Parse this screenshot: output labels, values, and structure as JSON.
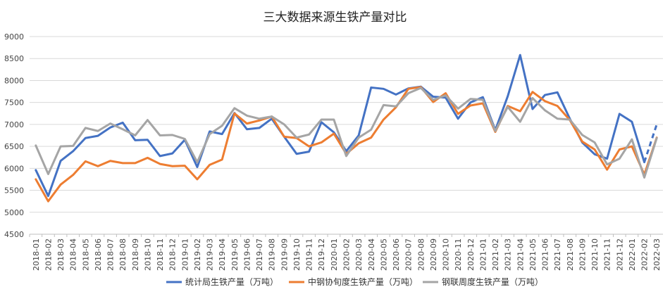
{
  "chart_data": {
    "type": "line",
    "title": "三大数据来源生铁产量对比",
    "xlabel": "",
    "ylabel": "",
    "ylim": [
      4500,
      9000
    ],
    "yticks": [
      4500,
      5000,
      5500,
      6000,
      6500,
      7000,
      7500,
      8000,
      8500,
      9000
    ],
    "grid": true,
    "legend_position": "bottom",
    "categories": [
      "2018-01",
      "2018-02",
      "2018-03",
      "2018-04",
      "2018-05",
      "2018-06",
      "2018-07",
      "2018-08",
      "2018-09",
      "2018-10",
      "2018-11",
      "2018-12",
      "2019-01",
      "2019-02",
      "2019-03",
      "2019-04",
      "2019-05",
      "2019-06",
      "2019-07",
      "2019-08",
      "2019-09",
      "2019-10",
      "2019-11",
      "2019-12",
      "2020-01",
      "2020-02",
      "2020-03",
      "2020-04",
      "2020-05",
      "2020-06",
      "2020-07",
      "2020-08",
      "2020-09",
      "2020-10",
      "2020-11",
      "2020-12",
      "2021-01",
      "2021-02",
      "2021-03",
      "2021-04",
      "2021-05",
      "2021-06",
      "2021-07",
      "2021-08",
      "2021-09",
      "2021-10",
      "2021-11",
      "2021-12",
      "2022-01",
      "2022-02",
      "2022-03"
    ],
    "series": [
      {
        "name": "统计局生铁产量（万吨）",
        "color": "#4472C4",
        "dashed_from_index": 49,
        "values": [
          5960,
          5370,
          6170,
          6390,
          6690,
          6740,
          6930,
          7040,
          6640,
          6650,
          6280,
          6340,
          6650,
          6030,
          6840,
          6780,
          7260,
          6890,
          6920,
          7130,
          6720,
          6330,
          6380,
          7050,
          6820,
          6390,
          6750,
          7840,
          7810,
          7680,
          7820,
          7860,
          7630,
          7610,
          7130,
          7500,
          7620,
          6870,
          7640,
          8580,
          7350,
          7670,
          7730,
          7130,
          6590,
          6320,
          6220,
          7240,
          7060,
          6140,
          7000
        ]
      },
      {
        "name": "中钢协旬度生铁产量（万吨）",
        "color": "#ED7D31",
        "values": [
          5750,
          5250,
          5630,
          5850,
          6160,
          6050,
          6170,
          6120,
          6120,
          6240,
          6100,
          6050,
          6060,
          5750,
          6080,
          6200,
          7250,
          7020,
          7090,
          7180,
          6720,
          6690,
          6500,
          6590,
          6790,
          6330,
          6570,
          6700,
          7110,
          7390,
          7810,
          7850,
          7510,
          7710,
          7240,
          7430,
          7480,
          6830,
          7420,
          7300,
          7740,
          7530,
          7420,
          7100,
          6610,
          6430,
          5970,
          6430,
          6500,
          5860,
          6700
        ]
      },
      {
        "name": "钢联周度生铁产量（万吨）",
        "color": "#A5A5A5",
        "values": [
          6520,
          5870,
          6500,
          6510,
          6920,
          6850,
          7020,
          6890,
          6750,
          7100,
          6750,
          6760,
          6670,
          6140,
          6780,
          6970,
          7370,
          7200,
          7130,
          7180,
          7000,
          6700,
          6770,
          7110,
          7110,
          6280,
          6700,
          6880,
          7440,
          7410,
          7710,
          7830,
          7560,
          7660,
          7360,
          7580,
          7560,
          6850,
          7400,
          7060,
          7600,
          7320,
          7130,
          7110,
          6760,
          6590,
          6090,
          6220,
          6660,
          5790,
          6690
        ]
      }
    ]
  }
}
